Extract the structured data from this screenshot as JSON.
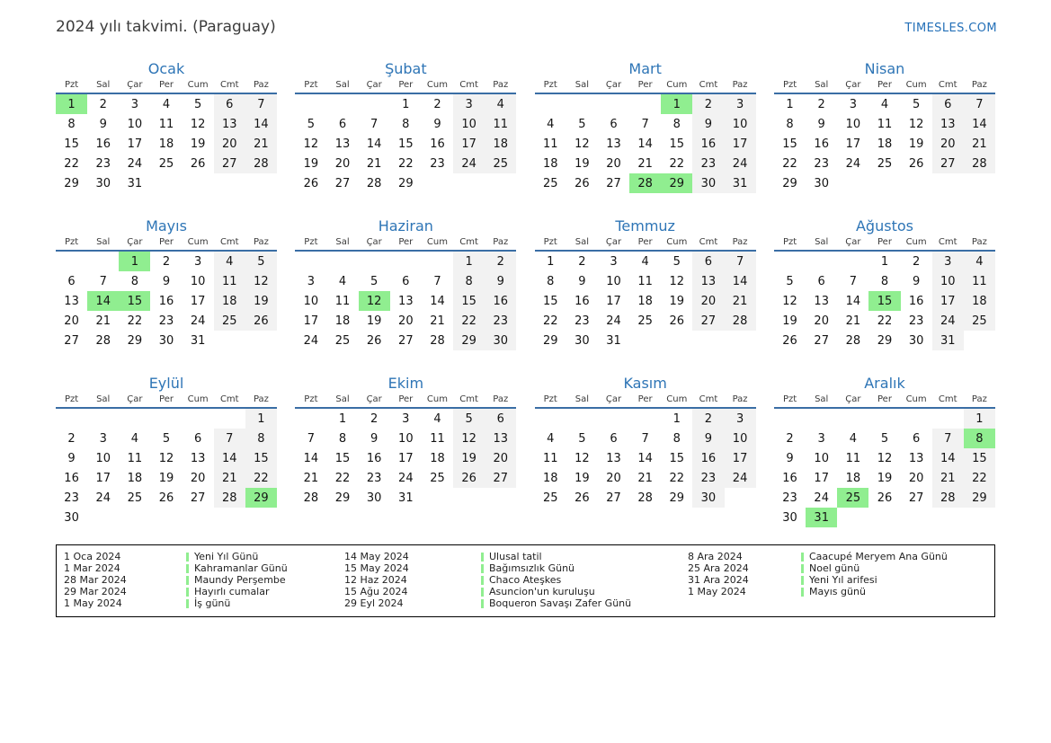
{
  "header": {
    "title": "2024 yılı takvimi. (Paraguay)",
    "site": "TIMESLES.COM"
  },
  "weekdays": [
    "Pzt",
    "Sal",
    "Çar",
    "Per",
    "Cum",
    "Cmt",
    "Paz"
  ],
  "colors": {
    "holiday_highlight": "#90ee90",
    "weekend_shade": "#f2f2f2",
    "month_title": "#2e75b6",
    "header_underline": "#3a6ea5",
    "site_link": "#2470b8"
  },
  "months": [
    {
      "name": "Ocak",
      "holidays": [
        1
      ],
      "weeks": [
        [
          1,
          2,
          3,
          4,
          5,
          6,
          7
        ],
        [
          8,
          9,
          10,
          11,
          12,
          13,
          14
        ],
        [
          15,
          16,
          17,
          18,
          19,
          20,
          21
        ],
        [
          22,
          23,
          24,
          25,
          26,
          27,
          28
        ],
        [
          29,
          30,
          31,
          "",
          "",
          "",
          ""
        ]
      ]
    },
    {
      "name": "Şubat",
      "holidays": [],
      "weeks": [
        [
          "",
          "",
          "",
          1,
          2,
          3,
          4
        ],
        [
          5,
          6,
          7,
          8,
          9,
          10,
          11
        ],
        [
          12,
          13,
          14,
          15,
          16,
          17,
          18
        ],
        [
          19,
          20,
          21,
          22,
          23,
          24,
          25
        ],
        [
          26,
          27,
          28,
          29,
          "",
          "",
          ""
        ]
      ]
    },
    {
      "name": "Mart",
      "holidays": [
        1,
        28,
        29
      ],
      "weeks": [
        [
          "",
          "",
          "",
          "",
          1,
          2,
          3
        ],
        [
          4,
          5,
          6,
          7,
          8,
          9,
          10
        ],
        [
          11,
          12,
          13,
          14,
          15,
          16,
          17
        ],
        [
          18,
          19,
          20,
          21,
          22,
          23,
          24
        ],
        [
          25,
          26,
          27,
          28,
          29,
          30,
          31
        ]
      ]
    },
    {
      "name": "Nisan",
      "holidays": [],
      "weeks": [
        [
          1,
          2,
          3,
          4,
          5,
          6,
          7
        ],
        [
          8,
          9,
          10,
          11,
          12,
          13,
          14
        ],
        [
          15,
          16,
          17,
          18,
          19,
          20,
          21
        ],
        [
          22,
          23,
          24,
          25,
          26,
          27,
          28
        ],
        [
          29,
          30,
          "",
          "",
          "",
          "",
          ""
        ]
      ]
    },
    {
      "name": "Mayıs",
      "holidays": [
        1,
        14,
        15
      ],
      "weeks": [
        [
          "",
          "",
          1,
          2,
          3,
          4,
          5
        ],
        [
          6,
          7,
          8,
          9,
          10,
          11,
          12
        ],
        [
          13,
          14,
          15,
          16,
          17,
          18,
          19
        ],
        [
          20,
          21,
          22,
          23,
          24,
          25,
          26
        ],
        [
          27,
          28,
          29,
          30,
          31,
          "",
          ""
        ]
      ]
    },
    {
      "name": "Haziran",
      "holidays": [
        12
      ],
      "weeks": [
        [
          "",
          "",
          "",
          "",
          "",
          1,
          2
        ],
        [
          3,
          4,
          5,
          6,
          7,
          8,
          9
        ],
        [
          10,
          11,
          12,
          13,
          14,
          15,
          16
        ],
        [
          17,
          18,
          19,
          20,
          21,
          22,
          23
        ],
        [
          24,
          25,
          26,
          27,
          28,
          29,
          30
        ]
      ]
    },
    {
      "name": "Temmuz",
      "holidays": [],
      "weeks": [
        [
          1,
          2,
          3,
          4,
          5,
          6,
          7
        ],
        [
          8,
          9,
          10,
          11,
          12,
          13,
          14
        ],
        [
          15,
          16,
          17,
          18,
          19,
          20,
          21
        ],
        [
          22,
          23,
          24,
          25,
          26,
          27,
          28
        ],
        [
          29,
          30,
          31,
          "",
          "",
          "",
          ""
        ]
      ]
    },
    {
      "name": "Ağustos",
      "holidays": [
        15
      ],
      "weeks": [
        [
          "",
          "",
          "",
          1,
          2,
          3,
          4
        ],
        [
          5,
          6,
          7,
          8,
          9,
          10,
          11
        ],
        [
          12,
          13,
          14,
          15,
          16,
          17,
          18
        ],
        [
          19,
          20,
          21,
          22,
          23,
          24,
          25
        ],
        [
          26,
          27,
          28,
          29,
          30,
          31,
          ""
        ]
      ]
    },
    {
      "name": "Eylül",
      "holidays": [
        29
      ],
      "weeks": [
        [
          "",
          "",
          "",
          "",
          "",
          "",
          1
        ],
        [
          2,
          3,
          4,
          5,
          6,
          7,
          8
        ],
        [
          9,
          10,
          11,
          12,
          13,
          14,
          15
        ],
        [
          16,
          17,
          18,
          19,
          20,
          21,
          22
        ],
        [
          23,
          24,
          25,
          26,
          27,
          28,
          29
        ],
        [
          30,
          "",
          "",
          "",
          "",
          "",
          ""
        ]
      ]
    },
    {
      "name": "Ekim",
      "holidays": [],
      "weeks": [
        [
          "",
          1,
          2,
          3,
          4,
          5,
          6
        ],
        [
          7,
          8,
          9,
          10,
          11,
          12,
          13
        ],
        [
          14,
          15,
          16,
          17,
          18,
          19,
          20
        ],
        [
          21,
          22,
          23,
          24,
          25,
          26,
          27
        ],
        [
          28,
          29,
          30,
          31,
          "",
          "",
          ""
        ]
      ]
    },
    {
      "name": "Kasım",
      "holidays": [],
      "weeks": [
        [
          "",
          "",
          "",
          "",
          1,
          2,
          3
        ],
        [
          4,
          5,
          6,
          7,
          8,
          9,
          10
        ],
        [
          11,
          12,
          13,
          14,
          15,
          16,
          17
        ],
        [
          18,
          19,
          20,
          21,
          22,
          23,
          24
        ],
        [
          25,
          26,
          27,
          28,
          29,
          30,
          ""
        ]
      ]
    },
    {
      "name": "Aralık",
      "holidays": [
        8,
        25,
        31
      ],
      "weeks": [
        [
          "",
          "",
          "",
          "",
          "",
          "",
          1
        ],
        [
          2,
          3,
          4,
          5,
          6,
          7,
          8
        ],
        [
          9,
          10,
          11,
          12,
          13,
          14,
          15
        ],
        [
          16,
          17,
          18,
          19,
          20,
          21,
          22
        ],
        [
          23,
          24,
          25,
          26,
          27,
          28,
          29
        ],
        [
          30,
          31,
          "",
          "",
          "",
          "",
          ""
        ]
      ]
    }
  ],
  "legend": {
    "columns": [
      {
        "entries": [
          {
            "date": "1 Oca 2024",
            "name": "Yeni Yıl Günü"
          },
          {
            "date": "1 Mar 2024",
            "name": "Kahramanlar Günü"
          },
          {
            "date": "28 Mar 2024",
            "name": "Maundy Perşembe"
          },
          {
            "date": "29 Mar 2024",
            "name": "Hayırlı cumalar"
          },
          {
            "date": "1 May 2024",
            "name": "İş günü"
          }
        ]
      },
      {
        "entries": [
          {
            "date": "14 May 2024",
            "name": "Ulusal tatil"
          },
          {
            "date": "15 May 2024",
            "name": "Bağımsızlık Günü"
          },
          {
            "date": "12 Haz 2024",
            "name": "Chaco Ateşkes"
          },
          {
            "date": "15 Ağu 2024",
            "name": "Asuncion'un kuruluşu"
          },
          {
            "date": "29 Eyl 2024",
            "name": "Boqueron Savaşı Zafer Günü"
          }
        ]
      },
      {
        "entries": [
          {
            "date": "8 Ara 2024",
            "name": "Caacupé Meryem Ana Günü"
          },
          {
            "date": "25 Ara 2024",
            "name": "Noel günü"
          },
          {
            "date": "31 Ara 2024",
            "name": "Yeni Yıl arifesi"
          },
          {
            "date": "1 May 2024",
            "name": "Mayıs günü"
          }
        ]
      }
    ]
  }
}
